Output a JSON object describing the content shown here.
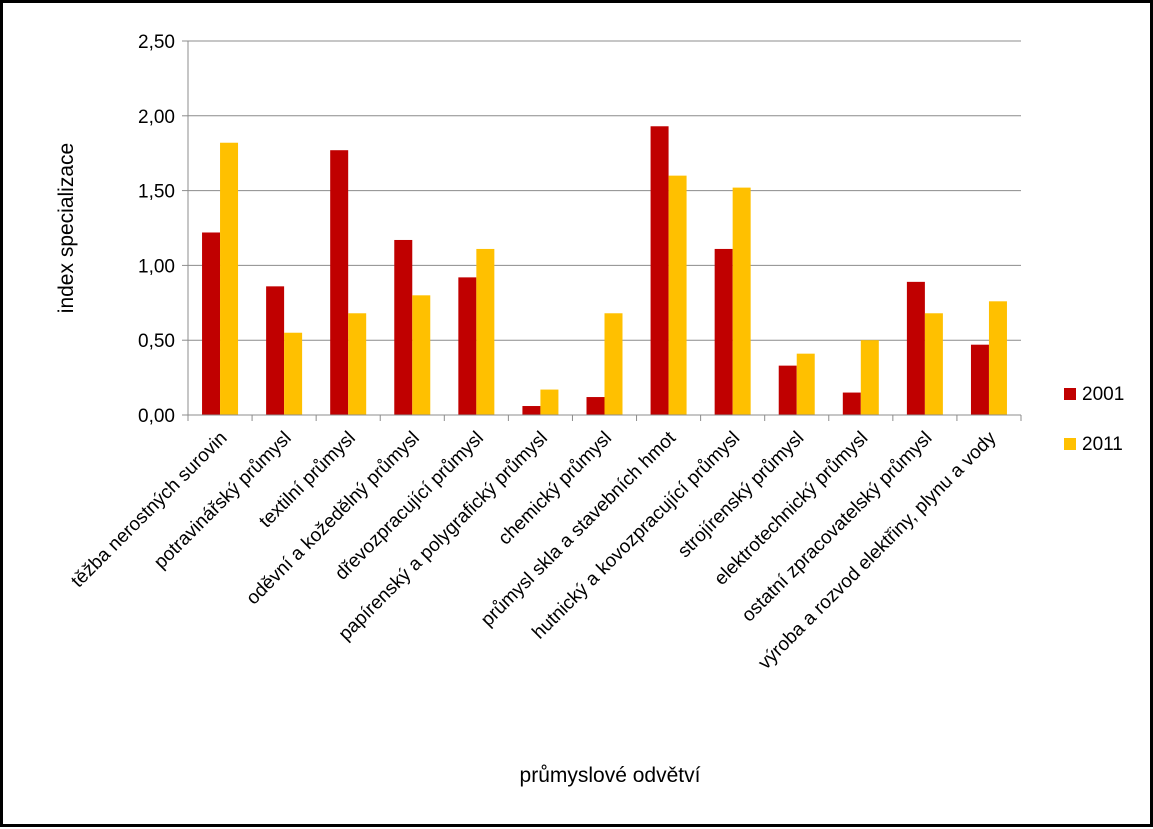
{
  "chart_data": {
    "type": "bar",
    "title": "",
    "xlabel": "průmyslové odvětví",
    "ylabel": "index specializace",
    "ylim": [
      0,
      2.5
    ],
    "yticks": [
      0,
      0.5,
      1.0,
      1.5,
      2.0,
      2.5
    ],
    "ytick_labels": [
      "0,00",
      "0,50",
      "1,00",
      "1,50",
      "2,00",
      "2,50"
    ],
    "grid": true,
    "legend_position": "right",
    "categories": [
      "těžba nerostných surovin",
      "potravinářský průmysl",
      "textilní průmysl",
      "oděvní a kožedělný průmysl",
      "dřevozpracující průmysl",
      "papírenský a polygrafický průmysl",
      "chemický průmysl",
      "průmysl skla a stavebních hmot",
      "hutnický a kovozpracující průmysl",
      "strojírenský průmysl",
      "elektrotechnický průmysl",
      "ostatní zpracovatelský průmysl",
      "výroba a rozvod elektřiny, plynu a vody"
    ],
    "series": [
      {
        "name": "2001",
        "color": "#C00000",
        "values": [
          1.22,
          0.86,
          1.77,
          1.17,
          0.92,
          0.06,
          0.12,
          1.93,
          1.11,
          0.33,
          0.15,
          0.89,
          0.47
        ]
      },
      {
        "name": "2011",
        "color": "#FFC000",
        "values": [
          1.82,
          0.55,
          0.68,
          0.8,
          1.11,
          0.17,
          0.68,
          1.6,
          1.52,
          0.41,
          0.5,
          0.68,
          0.76
        ]
      }
    ]
  }
}
